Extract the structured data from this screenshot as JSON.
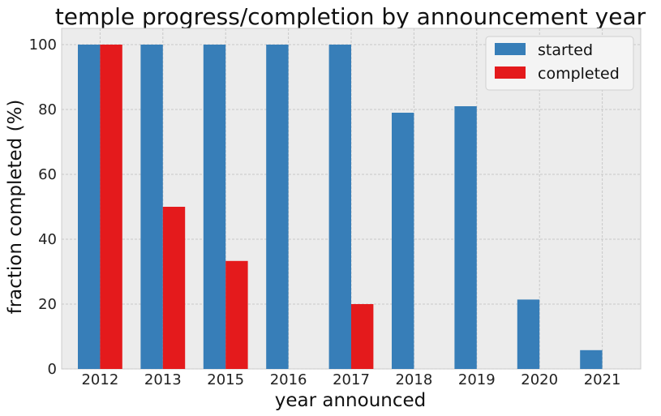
{
  "chart_data": {
    "type": "bar",
    "title": "temple progress/completion by announcement year",
    "xlabel": "year announced",
    "ylabel": "fraction completed (%)",
    "categories": [
      "2012",
      "2013",
      "2015",
      "2016",
      "2017",
      "2018",
      "2019",
      "2020",
      "2021"
    ],
    "series": [
      {
        "name": "started",
        "color": "#377eb8",
        "values": [
          100,
          100,
          100,
          100,
          100,
          79,
          81,
          21.4,
          5.8
        ]
      },
      {
        "name": "completed",
        "color": "#e41a1c",
        "values": [
          100,
          50,
          33.3,
          0,
          20,
          0,
          0,
          0,
          0
        ]
      }
    ],
    "ylim": [
      0,
      105
    ],
    "yticks": [
      0,
      20,
      40,
      60,
      80,
      100
    ],
    "grid": true,
    "legend_position": "top-right",
    "background": "#ececec"
  }
}
